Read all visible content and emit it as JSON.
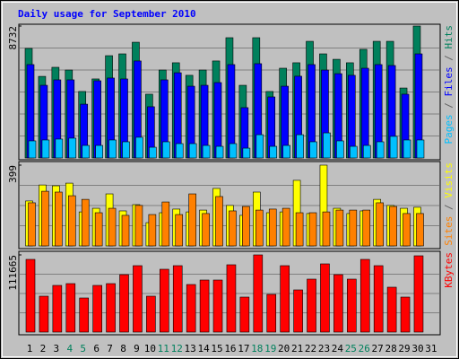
{
  "chart_data": {
    "type": "bar",
    "title": "Daily usage for September 2010",
    "categories": [
      "1",
      "2",
      "3",
      "4",
      "5",
      "6",
      "7",
      "8",
      "9",
      "10",
      "11",
      "12",
      "13",
      "14",
      "15",
      "16",
      "17",
      "18",
      "19",
      "20",
      "21",
      "22",
      "23",
      "24",
      "25",
      "26",
      "27",
      "28",
      "29",
      "30",
      "31"
    ],
    "highlighted_categories": [
      3,
      4,
      10,
      11,
      17,
      18,
      24,
      25
    ],
    "highlight_color": "#00805c",
    "legend_separator": " / ",
    "panels": [
      {
        "ylim": [
          0,
          8732
        ],
        "yticks": [
          8732
        ],
        "series": [
          {
            "name": "Hits",
            "color": "#00805c",
            "values": [
              7250,
              5400,
              6000,
              5820,
              4400,
              5230,
              6770,
              6890,
              7660,
              4220,
              5820,
              6300,
              5470,
              5820,
              6420,
              7960,
              4810,
              7960,
              4400,
              5940,
              6300,
              7720,
              6890,
              6530,
              6300,
              7190,
              7720,
              7720,
              4630,
              8732,
              null
            ]
          },
          {
            "name": "Files",
            "color": "#0000ff",
            "values": [
              6180,
              4810,
              5170,
              5170,
              3560,
              5110,
              5290,
              5230,
              6420,
              3390,
              5170,
              5640,
              4750,
              4810,
              4990,
              6180,
              3330,
              6240,
              4040,
              4750,
              5410,
              6180,
              5820,
              5580,
              5470,
              5940,
              6180,
              6120,
              4220,
              6890,
              null
            ]
          },
          {
            "name": "Pages",
            "color": "#00c0ff",
            "values": [
              1130,
              1190,
              1250,
              1310,
              830,
              830,
              1190,
              1070,
              1370,
              710,
              1070,
              950,
              950,
              830,
              770,
              950,
              650,
              1540,
              770,
              830,
              1540,
              1070,
              1660,
              1130,
              770,
              830,
              1070,
              1430,
              1190,
              1190,
              null
            ]
          }
        ]
      },
      {
        "ylim": [
          0,
          399
        ],
        "yticks": [
          399
        ],
        "series": [
          {
            "name": "Visits",
            "color": "#ffff00",
            "values": [
              222,
              301,
              297,
              310,
              168,
              186,
              257,
              173,
              204,
              115,
              164,
              182,
              168,
              177,
              284,
              200,
              151,
              266,
              164,
              168,
              324,
              160,
              399,
              186,
              160,
              173,
              230,
              200,
              186,
              191,
              null
            ]
          },
          {
            "name": "Sites",
            "color": "#ff8000",
            "values": [
              213,
              270,
              266,
              248,
              230,
              164,
              186,
              151,
              200,
              155,
              217,
              155,
              257,
              160,
              244,
              173,
              195,
              177,
              182,
              186,
              164,
              164,
              168,
              177,
              177,
              177,
              213,
              195,
              160,
              160,
              null
            ]
          }
        ]
      },
      {
        "ylim": [
          0,
          111665
        ],
        "yticks": [
          111665
        ],
        "series": [
          {
            "name": "KBytes",
            "color": "#ff0000",
            "values": [
              105170,
              51940,
              67520,
              70120,
              49340,
              67520,
              70120,
              83100,
              96080,
              51940,
              90890,
              96080,
              68820,
              75310,
              75310,
              97380,
              50640,
              111665,
              54530,
              96080,
              61030,
              76610,
              98680,
              83100,
              76610,
              105170,
              96080,
              64920,
              50640,
              110370,
              null
            ]
          }
        ]
      }
    ]
  }
}
